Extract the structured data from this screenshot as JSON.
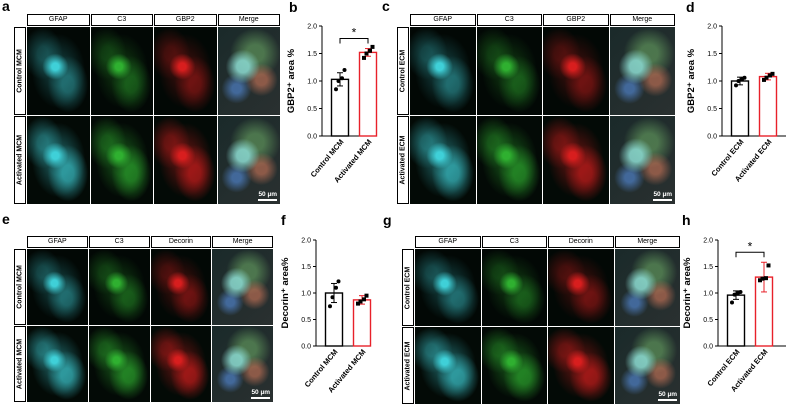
{
  "panels": {
    "a": {
      "letter": "a",
      "headers": [
        "GFAP",
        "C3",
        "GBP2",
        "Merge"
      ],
      "rows": [
        "Control MCM",
        "Activated MCM"
      ],
      "scale": "50 µm"
    },
    "c": {
      "letter": "c",
      "headers": [
        "GFAP",
        "C3",
        "GBP2",
        "Merge"
      ],
      "rows": [
        "Control ECM",
        "Activated ECM"
      ],
      "scale": "50 µm"
    },
    "e": {
      "letter": "e",
      "headers": [
        "GFAP",
        "C3",
        "Decorin",
        "Merge"
      ],
      "rows": [
        "Control MCM",
        "Activated MCM"
      ],
      "scale": "50 µm"
    },
    "g": {
      "letter": "g",
      "headers": [
        "GFAP",
        "C3",
        "Decorin",
        "Merge"
      ],
      "rows": [
        "Control ECM",
        "Activated ECM"
      ],
      "scale": "50 µm"
    }
  },
  "chart_letters": {
    "b": "b",
    "d": "d",
    "f": "f",
    "h": "h"
  },
  "colors": {
    "control": "#000000",
    "activated": "#e8212a",
    "gfap": "#3fd0d8",
    "c3": "#2fb030",
    "red": "#d81e1e"
  },
  "chart_data": [
    {
      "panel": "b",
      "type": "bar",
      "categories": [
        "Control MCM",
        "Activated MCM"
      ],
      "values": [
        1.03,
        1.52
      ],
      "errors": [
        0.12,
        0.07
      ],
      "points": [
        [
          0.85,
          1.0,
          1.05,
          1.2
        ],
        [
          1.42,
          1.5,
          1.55,
          1.62
        ]
      ],
      "ylabel": "GBP2⁺ area %",
      "ylim": [
        0,
        2.0
      ],
      "yticks": [
        "0.0",
        "0.5",
        "1.0",
        "1.5",
        "2.0"
      ],
      "significance": "*"
    },
    {
      "panel": "d",
      "type": "bar",
      "categories": [
        "Control ECM",
        "Activated ECM"
      ],
      "values": [
        1.0,
        1.08
      ],
      "errors": [
        0.07,
        0.06
      ],
      "points": [
        [
          0.92,
          1.0,
          1.03,
          1.06
        ],
        [
          1.02,
          1.06,
          1.1,
          1.13
        ]
      ],
      "ylabel": "GBP2⁺ area %",
      "ylim": [
        0,
        2.0
      ],
      "yticks": [
        "0.0",
        "0.5",
        "1.0",
        "1.5",
        "2.0"
      ],
      "significance": ""
    },
    {
      "panel": "f",
      "type": "bar",
      "categories": [
        "Control MCM",
        "Activated MCM"
      ],
      "values": [
        1.0,
        0.87
      ],
      "errors": [
        0.18,
        0.08
      ],
      "points": [
        [
          0.75,
          0.92,
          1.1,
          1.22
        ],
        [
          0.8,
          0.84,
          0.88,
          0.95
        ]
      ],
      "ylabel": "Decorin⁺ area%",
      "ylim": [
        0,
        2.0
      ],
      "yticks": [
        "0.0",
        "0.5",
        "1.0",
        "1.5",
        "2.0"
      ],
      "significance": ""
    },
    {
      "panel": "h",
      "type": "bar",
      "categories": [
        "Control ECM",
        "Activated ECM"
      ],
      "values": [
        0.96,
        1.3
      ],
      "errors": [
        0.08,
        0.28
      ],
      "points": [
        [
          0.82,
          0.97,
          1.0,
          1.02
        ],
        [
          1.24,
          1.27,
          1.28,
          1.52
        ]
      ],
      "ylabel": "Decorin⁺ area%",
      "ylim": [
        0,
        2.0
      ],
      "yticks": [
        "0.0",
        "0.5",
        "1.0",
        "1.5",
        "2.0"
      ],
      "significance": "*"
    }
  ]
}
